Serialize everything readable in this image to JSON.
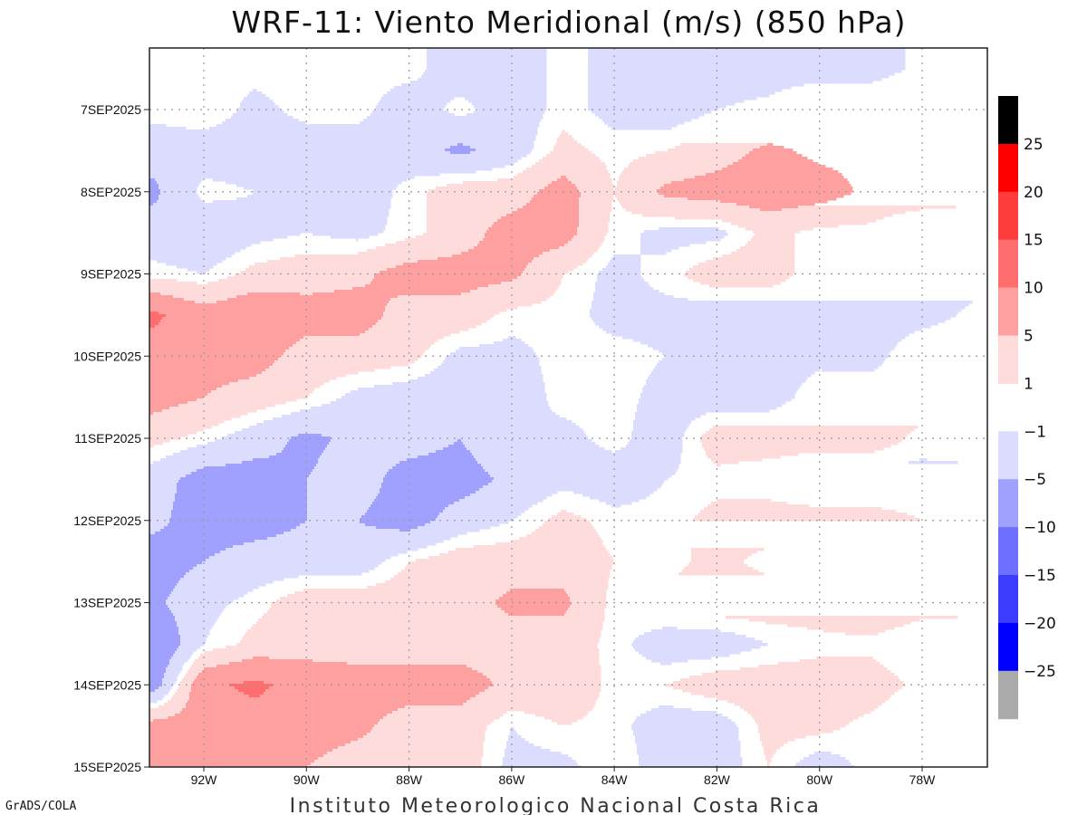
{
  "chart_data": {
    "type": "heatmap",
    "subtype": "filled-contour hovmoller",
    "title": "WRF-11: Viento Meridional (m/s) (850 hPa)",
    "xlabel": "",
    "ylabel": "",
    "units": "m/s",
    "lon_range_deg": [
      -93.05,
      -76.75
    ],
    "time_range_hours_since_7SEP2025_00Z": [
      -18,
      192
    ],
    "grid": true,
    "x_ticks": [
      {
        "label": "92W",
        "lon": -92
      },
      {
        "label": "90W",
        "lon": -90
      },
      {
        "label": "88W",
        "lon": -88
      },
      {
        "label": "86W",
        "lon": -86
      },
      {
        "label": "84W",
        "lon": -84
      },
      {
        "label": "82W",
        "lon": -82
      },
      {
        "label": "80W",
        "lon": -80
      },
      {
        "label": "78W",
        "lon": -78
      }
    ],
    "y_ticks": [
      {
        "label": "7SEP2025",
        "hours": 0
      },
      {
        "label": "8SEP2025",
        "hours": 24
      },
      {
        "label": "9SEP2025",
        "hours": 48
      },
      {
        "label": "10SEP2025",
        "hours": 72
      },
      {
        "label": "11SEP2025",
        "hours": 96
      },
      {
        "label": "12SEP2025",
        "hours": 120
      },
      {
        "label": "13SEP2025",
        "hours": 144
      },
      {
        "label": "14SEP2025",
        "hours": 168
      },
      {
        "label": "15SEP2025",
        "hours": 192
      }
    ],
    "levels": [
      -25,
      -20,
      -15,
      -10,
      -5,
      -1,
      1,
      5,
      10,
      15,
      20,
      25
    ],
    "colors": [
      "#aaaaaa",
      "#0000ff",
      "#3c3cff",
      "#6e6eff",
      "#a0a0ff",
      "#dcdcff",
      "#ffffff",
      "#ffdcdc",
      "#ffa0a0",
      "#ff6e6e",
      "#ff3c3c",
      "#ff0000",
      "#000000"
    ],
    "colorbar": {
      "position": "right",
      "labels": [
        "25",
        "20",
        "15",
        "10",
        "5",
        "1",
        "-1",
        "-5",
        "-10",
        "-15",
        "-20",
        "-25"
      ]
    },
    "grid_lons": [
      -93,
      -92,
      -91,
      -90,
      -89,
      -88,
      -87,
      -86,
      -85,
      -84,
      -83,
      -82,
      -81,
      -80,
      -79,
      -78,
      -77
    ],
    "grid_time_start_hours": -12,
    "grid_time_step_hours": 12,
    "values": [
      [
        0,
        0,
        0,
        1,
        0,
        0,
        -3,
        -3,
        0,
        -2,
        -3,
        -3,
        -3,
        -3,
        -3,
        0,
        3
      ],
      [
        0,
        1,
        -2,
        0,
        0,
        -3,
        0,
        -3,
        0,
        -2,
        -3,
        -1,
        0,
        3,
        3,
        3,
        3
      ],
      [
        -3,
        -3,
        -3,
        -3,
        -3,
        -3,
        -6,
        -3,
        2,
        0,
        1,
        3,
        6,
        4,
        4,
        3,
        3
      ],
      [
        -6,
        0,
        -1,
        -3,
        -3,
        0,
        3,
        3,
        7,
        1,
        6,
        7,
        8,
        7,
        4,
        4,
        3
      ],
      [
        -3,
        -4,
        -2,
        -1,
        -2,
        0,
        3,
        7,
        7,
        0,
        -2,
        -2,
        2,
        0,
        0,
        -3,
        -3
      ],
      [
        0,
        -1,
        2,
        3,
        4,
        7,
        7,
        6,
        1,
        -2,
        0,
        3,
        3,
        -1,
        -3,
        -3,
        -3
      ],
      [
        11,
        7,
        9,
        7,
        7,
        3,
        3,
        0,
        0,
        -2,
        -2,
        -3,
        -3,
        -3,
        -4,
        -3,
        0
      ],
      [
        8,
        7,
        7,
        3,
        3,
        2,
        -2,
        -2,
        0,
        0,
        -1,
        -3,
        -3,
        -2,
        -3,
        3,
        3
      ],
      [
        7,
        5,
        3,
        1,
        -2,
        -3,
        -3,
        -3,
        0,
        0,
        -2,
        -3,
        -3,
        1,
        2,
        3,
        3
      ],
      [
        2,
        0,
        -3,
        -6,
        -4,
        -3,
        -5,
        -1,
        -2,
        0,
        -3,
        3,
        3,
        3,
        3,
        0,
        2
      ],
      [
        -3,
        -7,
        -7,
        -5,
        -3,
        -7,
        -7,
        -4,
        -2,
        -3,
        -1,
        0,
        -1,
        -3,
        -3,
        -2,
        -3
      ],
      [
        -4,
        -7,
        -7,
        -5,
        -5,
        -7,
        -3,
        -1,
        2,
        0,
        0,
        2,
        3,
        3,
        3,
        1,
        2
      ],
      [
        -7,
        -5,
        -3,
        -3,
        -3,
        1,
        3,
        3,
        3,
        1,
        0,
        2,
        0,
        3,
        3,
        3,
        3
      ],
      [
        -6,
        -2,
        0,
        3,
        3,
        3,
        3,
        6,
        6,
        0,
        2,
        3,
        3,
        3,
        5,
        3,
        3
      ],
      [
        -10,
        -1,
        2,
        3,
        3,
        3,
        3,
        3,
        3,
        0,
        -3,
        -3,
        -1,
        0,
        0,
        -2,
        -3
      ],
      [
        -8,
        9,
        11,
        8,
        7,
        7,
        7,
        4,
        4,
        0,
        1,
        3,
        3,
        3,
        3,
        0,
        -2
      ],
      [
        7,
        7,
        8,
        7,
        6,
        3,
        3,
        -1,
        1,
        0,
        -3,
        -3,
        2,
        2,
        0,
        -3,
        -3
      ],
      [
        7,
        7,
        7,
        5,
        3,
        3,
        3,
        -2,
        -2,
        1,
        -3,
        -3,
        1,
        -3,
        0,
        0,
        0
      ]
    ]
  },
  "credit": "GrADS/COLA",
  "footer": "Instituto Meteorologico Nacional Costa Rica"
}
